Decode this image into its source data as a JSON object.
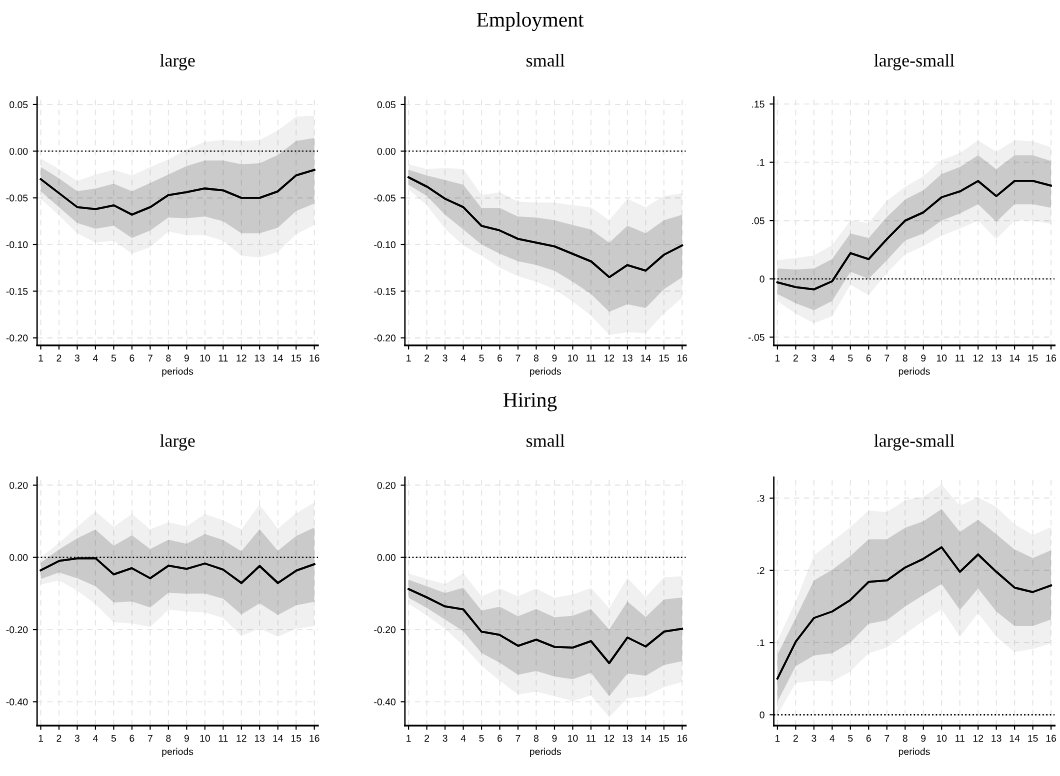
{
  "chart_data": [
    {
      "type": "line",
      "title": "large",
      "xlabel": "periods",
      "annotations": [
        "Employment"
      ],
      "grid": true,
      "x": [
        1,
        2,
        3,
        4,
        5,
        6,
        7,
        8,
        9,
        10,
        11,
        12,
        13,
        14,
        15,
        16
      ],
      "xlim": [
        0.8,
        16.2
      ],
      "xticks": [
        1,
        2,
        3,
        4,
        5,
        6,
        7,
        8,
        9,
        10,
        11,
        12,
        13,
        14,
        15,
        16
      ],
      "ylim": [
        -0.208,
        0.058
      ],
      "yticks": [
        {
          "value": 0.05,
          "label": "0.05"
        },
        {
          "value": 0.0,
          "label": "0.00"
        },
        {
          "value": -0.05,
          "label": "-0.05"
        },
        {
          "value": -0.1,
          "label": "-0.10"
        },
        {
          "value": -0.15,
          "label": "-0.15"
        },
        {
          "value": -0.2,
          "label": "-0.20"
        }
      ],
      "ref_lines": [
        {
          "axis": "y",
          "value": 0,
          "label": null,
          "color": "#000000",
          "line_style": "dotted"
        }
      ],
      "series": [
        {
          "color": "#000000",
          "values": [
            -0.03,
            -0.045,
            -0.06,
            -0.062,
            -0.058,
            -0.068,
            -0.06,
            -0.047,
            -0.044,
            -0.04,
            -0.042,
            -0.05,
            -0.05,
            -0.043,
            -0.026,
            -0.02
          ],
          "lower": [
            -0.043,
            -0.06,
            -0.077,
            -0.083,
            -0.08,
            -0.093,
            -0.085,
            -0.071,
            -0.072,
            -0.07,
            -0.075,
            -0.088,
            -0.088,
            -0.082,
            -0.064,
            -0.056
          ],
          "upper": [
            -0.017,
            -0.029,
            -0.043,
            -0.04,
            -0.035,
            -0.043,
            -0.034,
            -0.025,
            -0.016,
            -0.01,
            -0.01,
            -0.014,
            -0.013,
            -0.004,
            0.011,
            0.014
          ]
        },
        {
          "color": "#000000",
          "values": [
            -0.03,
            -0.045,
            -0.06,
            -0.062,
            -0.058,
            -0.068,
            -0.06,
            -0.047,
            -0.044,
            -0.04,
            -0.042,
            -0.05,
            -0.05,
            -0.043,
            -0.026,
            -0.02
          ],
          "lower": [
            -0.051,
            -0.069,
            -0.088,
            -0.098,
            -0.096,
            -0.11,
            -0.103,
            -0.086,
            -0.09,
            -0.09,
            -0.096,
            -0.112,
            -0.114,
            -0.108,
            -0.089,
            -0.079
          ],
          "upper": [
            -0.008,
            -0.019,
            -0.032,
            -0.025,
            -0.02,
            -0.026,
            -0.017,
            -0.009,
            0.002,
            0.01,
            0.012,
            0.011,
            0.012,
            0.022,
            0.037,
            0.038
          ]
        }
      ]
    },
    {
      "type": "line",
      "title": "small",
      "xlabel": "periods",
      "grid": true,
      "x": [
        1,
        2,
        3,
        4,
        5,
        6,
        7,
        8,
        9,
        10,
        11,
        12,
        13,
        14,
        15,
        16
      ],
      "xlim": [
        0.8,
        16.2
      ],
      "xticks": [
        1,
        2,
        3,
        4,
        5,
        6,
        7,
        8,
        9,
        10,
        11,
        12,
        13,
        14,
        15,
        16
      ],
      "ylim": [
        -0.208,
        0.058
      ],
      "yticks": [
        {
          "value": 0.05,
          "label": "0.05"
        },
        {
          "value": 0.0,
          "label": "0.00"
        },
        {
          "value": -0.05,
          "label": "-0.05"
        },
        {
          "value": -0.1,
          "label": "-0.10"
        },
        {
          "value": -0.15,
          "label": "-0.15"
        },
        {
          "value": -0.2,
          "label": "-0.20"
        }
      ],
      "ref_lines": [
        {
          "axis": "y",
          "value": 0,
          "label": null,
          "color": "#000000",
          "line_style": "dotted"
        }
      ],
      "series": [
        {
          "color": "#000000",
          "values": [
            -0.028,
            -0.038,
            -0.051,
            -0.06,
            -0.08,
            -0.085,
            -0.094,
            -0.098,
            -0.102,
            -0.11,
            -0.118,
            -0.135,
            -0.122,
            -0.128,
            -0.111,
            -0.101
          ],
          "lower": [
            -0.036,
            -0.048,
            -0.068,
            -0.084,
            -0.1,
            -0.11,
            -0.118,
            -0.122,
            -0.128,
            -0.14,
            -0.153,
            -0.172,
            -0.164,
            -0.168,
            -0.148,
            -0.135
          ],
          "upper": [
            -0.02,
            -0.026,
            -0.031,
            -0.036,
            -0.061,
            -0.061,
            -0.07,
            -0.071,
            -0.074,
            -0.079,
            -0.084,
            -0.098,
            -0.08,
            -0.088,
            -0.074,
            -0.068
          ]
        },
        {
          "color": "#000000",
          "values": [
            -0.028,
            -0.038,
            -0.051,
            -0.06,
            -0.08,
            -0.085,
            -0.094,
            -0.098,
            -0.102,
            -0.11,
            -0.118,
            -0.135,
            -0.122,
            -0.128,
            -0.111,
            -0.101
          ],
          "lower": [
            -0.041,
            -0.058,
            -0.083,
            -0.101,
            -0.112,
            -0.125,
            -0.134,
            -0.14,
            -0.148,
            -0.161,
            -0.176,
            -0.197,
            -0.194,
            -0.195,
            -0.174,
            -0.157
          ],
          "upper": [
            -0.014,
            -0.019,
            -0.018,
            -0.019,
            -0.047,
            -0.044,
            -0.054,
            -0.055,
            -0.055,
            -0.058,
            -0.06,
            -0.074,
            -0.051,
            -0.06,
            -0.048,
            -0.045
          ]
        }
      ]
    },
    {
      "type": "line",
      "title": "large-small",
      "xlabel": "periods",
      "grid": true,
      "x": [
        1,
        2,
        3,
        4,
        5,
        6,
        7,
        8,
        9,
        10,
        11,
        12,
        13,
        14,
        15,
        16
      ],
      "xlim": [
        0.8,
        16.2
      ],
      "xticks": [
        1,
        2,
        3,
        4,
        5,
        6,
        7,
        8,
        9,
        10,
        11,
        12,
        13,
        14,
        15,
        16
      ],
      "ylim": [
        -0.057,
        0.156
      ],
      "yticks": [
        {
          "value": 0.15,
          "label": ".15"
        },
        {
          "value": 0.1,
          "label": ".1"
        },
        {
          "value": 0.05,
          "label": ".05"
        },
        0,
        {
          "value": -0.05,
          "label": "-.05"
        }
      ],
      "ref_lines": [
        {
          "axis": "y",
          "value": 0,
          "label": null,
          "color": "#000000",
          "line_style": "dotted"
        }
      ],
      "series": [
        {
          "color": "#000000",
          "values": [
            -0.003,
            -0.007,
            -0.009,
            -0.002,
            0.022,
            0.017,
            0.034,
            0.05,
            0.057,
            0.07,
            0.075,
            0.084,
            0.071,
            0.084,
            0.084,
            0.08
          ],
          "lower": [
            -0.013,
            -0.021,
            -0.027,
            -0.019,
            0.006,
            0.0,
            0.016,
            0.033,
            0.039,
            0.05,
            0.056,
            0.064,
            0.049,
            0.064,
            0.064,
            0.061
          ],
          "upper": [
            0.009,
            0.008,
            0.009,
            0.017,
            0.039,
            0.035,
            0.053,
            0.068,
            0.076,
            0.09,
            0.096,
            0.106,
            0.094,
            0.106,
            0.106,
            0.101
          ]
        },
        {
          "color": "#000000",
          "values": [
            -0.003,
            -0.007,
            -0.009,
            -0.002,
            0.022,
            0.017,
            0.034,
            0.05,
            0.057,
            0.07,
            0.075,
            0.084,
            0.071,
            0.084,
            0.084,
            0.08
          ],
          "lower": [
            -0.019,
            -0.03,
            -0.038,
            -0.032,
            -0.005,
            -0.014,
            0.005,
            0.021,
            0.028,
            0.037,
            0.043,
            0.05,
            0.034,
            0.05,
            0.05,
            0.047
          ],
          "upper": [
            0.016,
            0.018,
            0.02,
            0.029,
            0.05,
            0.048,
            0.067,
            0.079,
            0.088,
            0.102,
            0.108,
            0.119,
            0.109,
            0.119,
            0.118,
            0.113
          ]
        }
      ]
    },
    {
      "type": "line",
      "title": "large",
      "xlabel": "periods",
      "annotations": [
        "Hiring"
      ],
      "grid": true,
      "x": [
        1,
        2,
        3,
        4,
        5,
        6,
        7,
        8,
        9,
        10,
        11,
        12,
        13,
        14,
        15,
        16
      ],
      "xlim": [
        0.8,
        16.2
      ],
      "xticks": [
        1,
        2,
        3,
        4,
        5,
        6,
        7,
        8,
        9,
        10,
        11,
        12,
        13,
        14,
        15,
        16
      ],
      "ylim": [
        -0.466,
        0.222
      ],
      "yticks": [
        {
          "value": 0.2,
          "label": "0.20"
        },
        {
          "value": 0.0,
          "label": "0.00"
        },
        {
          "value": -0.2,
          "label": "-0.20"
        },
        {
          "value": -0.4,
          "label": "-0.40"
        }
      ],
      "ref_lines": [
        {
          "axis": "y",
          "value": 0,
          "label": null,
          "color": "#000000",
          "line_style": "dotted"
        }
      ],
      "series": [
        {
          "color": "#000000",
          "values": [
            -0.036,
            -0.01,
            -0.003,
            -0.002,
            -0.047,
            -0.03,
            -0.058,
            -0.023,
            -0.032,
            -0.017,
            -0.034,
            -0.071,
            -0.024,
            -0.071,
            -0.037,
            -0.019
          ],
          "lower": [
            -0.06,
            -0.042,
            -0.058,
            -0.08,
            -0.125,
            -0.122,
            -0.139,
            -0.098,
            -0.101,
            -0.1,
            -0.115,
            -0.158,
            -0.127,
            -0.16,
            -0.133,
            -0.123
          ],
          "upper": [
            -0.015,
            0.022,
            0.053,
            0.077,
            0.032,
            0.061,
            0.023,
            0.049,
            0.038,
            0.065,
            0.048,
            0.017,
            0.078,
            0.018,
            0.059,
            0.083
          ]
        },
        {
          "color": "#000000",
          "values": [
            -0.036,
            -0.01,
            -0.003,
            -0.002,
            -0.047,
            -0.03,
            -0.058,
            -0.023,
            -0.032,
            -0.017,
            -0.034,
            -0.071,
            -0.024,
            -0.071,
            -0.037,
            -0.019
          ],
          "lower": [
            -0.075,
            -0.064,
            -0.092,
            -0.13,
            -0.18,
            -0.183,
            -0.193,
            -0.145,
            -0.15,
            -0.153,
            -0.168,
            -0.218,
            -0.197,
            -0.22,
            -0.198,
            -0.19
          ],
          "upper": [
            0.0,
            0.04,
            0.085,
            0.127,
            0.085,
            0.12,
            0.078,
            0.097,
            0.086,
            0.12,
            0.103,
            0.078,
            0.146,
            0.08,
            0.122,
            0.152
          ]
        }
      ]
    },
    {
      "type": "line",
      "title": "small",
      "xlabel": "periods",
      "grid": true,
      "x": [
        1,
        2,
        3,
        4,
        5,
        6,
        7,
        8,
        9,
        10,
        11,
        12,
        13,
        14,
        15,
        16
      ],
      "xlim": [
        0.8,
        16.2
      ],
      "xticks": [
        1,
        2,
        3,
        4,
        5,
        6,
        7,
        8,
        9,
        10,
        11,
        12,
        13,
        14,
        15,
        16
      ],
      "ylim": [
        -0.466,
        0.222
      ],
      "yticks": [
        {
          "value": 0.2,
          "label": "0.20"
        },
        {
          "value": 0.0,
          "label": "0.00"
        },
        {
          "value": -0.2,
          "label": "-0.20"
        },
        {
          "value": -0.4,
          "label": "-0.40"
        }
      ],
      "ref_lines": [
        {
          "axis": "y",
          "value": 0,
          "label": null,
          "color": "#000000",
          "line_style": "dotted"
        }
      ],
      "series": [
        {
          "color": "#000000",
          "values": [
            -0.088,
            -0.111,
            -0.136,
            -0.144,
            -0.206,
            -0.215,
            -0.245,
            -0.228,
            -0.248,
            -0.25,
            -0.232,
            -0.293,
            -0.222,
            -0.247,
            -0.206,
            -0.198
          ],
          "lower": [
            -0.112,
            -0.14,
            -0.172,
            -0.205,
            -0.265,
            -0.292,
            -0.325,
            -0.315,
            -0.33,
            -0.338,
            -0.32,
            -0.385,
            -0.322,
            -0.328,
            -0.298,
            -0.288
          ],
          "upper": [
            -0.062,
            -0.08,
            -0.099,
            -0.084,
            -0.147,
            -0.137,
            -0.163,
            -0.143,
            -0.166,
            -0.162,
            -0.143,
            -0.2,
            -0.122,
            -0.165,
            -0.117,
            -0.111
          ]
        },
        {
          "color": "#000000",
          "values": [
            -0.088,
            -0.111,
            -0.136,
            -0.144,
            -0.206,
            -0.215,
            -0.245,
            -0.228,
            -0.248,
            -0.25,
            -0.232,
            -0.293,
            -0.222,
            -0.247,
            -0.206,
            -0.198
          ],
          "lower": [
            -0.128,
            -0.162,
            -0.198,
            -0.245,
            -0.3,
            -0.342,
            -0.38,
            -0.372,
            -0.385,
            -0.398,
            -0.383,
            -0.443,
            -0.39,
            -0.385,
            -0.36,
            -0.345
          ],
          "upper": [
            -0.045,
            -0.06,
            -0.074,
            -0.044,
            -0.108,
            -0.086,
            -0.108,
            -0.086,
            -0.112,
            -0.103,
            -0.085,
            -0.14,
            -0.057,
            -0.11,
            -0.055,
            -0.052
          ]
        }
      ]
    },
    {
      "type": "line",
      "title": "large-small",
      "xlabel": "periods",
      "grid": true,
      "x": [
        1,
        2,
        3,
        4,
        5,
        6,
        7,
        8,
        9,
        10,
        11,
        12,
        13,
        14,
        15,
        16
      ],
      "xlim": [
        0.8,
        16.2
      ],
      "xticks": [
        1,
        2,
        3,
        4,
        5,
        6,
        7,
        8,
        9,
        10,
        11,
        12,
        13,
        14,
        15,
        16
      ],
      "ylim": [
        -0.015,
        0.329
      ],
      "yticks": [
        {
          "value": 0.3,
          "label": ".3"
        },
        {
          "value": 0.2,
          "label": ".2"
        },
        {
          "value": 0.1,
          "label": ".1"
        },
        0
      ],
      "ref_lines": [
        {
          "axis": "y",
          "value": 0,
          "label": null,
          "color": "#000000",
          "line_style": "dotted"
        }
      ],
      "series": [
        {
          "color": "#000000",
          "values": [
            0.05,
            0.101,
            0.134,
            0.143,
            0.159,
            0.184,
            0.186,
            0.204,
            0.216,
            0.232,
            0.198,
            0.222,
            0.198,
            0.176,
            0.17,
            0.179
          ],
          "lower": [
            0.018,
            0.067,
            0.082,
            0.085,
            0.1,
            0.126,
            0.131,
            0.15,
            0.166,
            0.181,
            0.145,
            0.175,
            0.143,
            0.123,
            0.123,
            0.132
          ],
          "upper": [
            0.083,
            0.134,
            0.186,
            0.201,
            0.22,
            0.243,
            0.243,
            0.259,
            0.268,
            0.285,
            0.253,
            0.27,
            0.25,
            0.229,
            0.217,
            0.228
          ]
        },
        {
          "color": "#000000",
          "values": [
            0.05,
            0.101,
            0.134,
            0.143,
            0.159,
            0.184,
            0.186,
            0.204,
            0.216,
            0.232,
            0.198,
            0.222,
            0.198,
            0.176,
            0.17,
            0.179
          ],
          "lower": [
            0.0,
            0.044,
            0.047,
            0.046,
            0.06,
            0.085,
            0.093,
            0.112,
            0.13,
            0.146,
            0.108,
            0.141,
            0.108,
            0.087,
            0.091,
            0.099
          ],
          "upper": [
            0.103,
            0.157,
            0.221,
            0.24,
            0.26,
            0.283,
            0.281,
            0.297,
            0.302,
            0.319,
            0.29,
            0.301,
            0.288,
            0.264,
            0.249,
            0.26
          ]
        }
      ]
    }
  ]
}
